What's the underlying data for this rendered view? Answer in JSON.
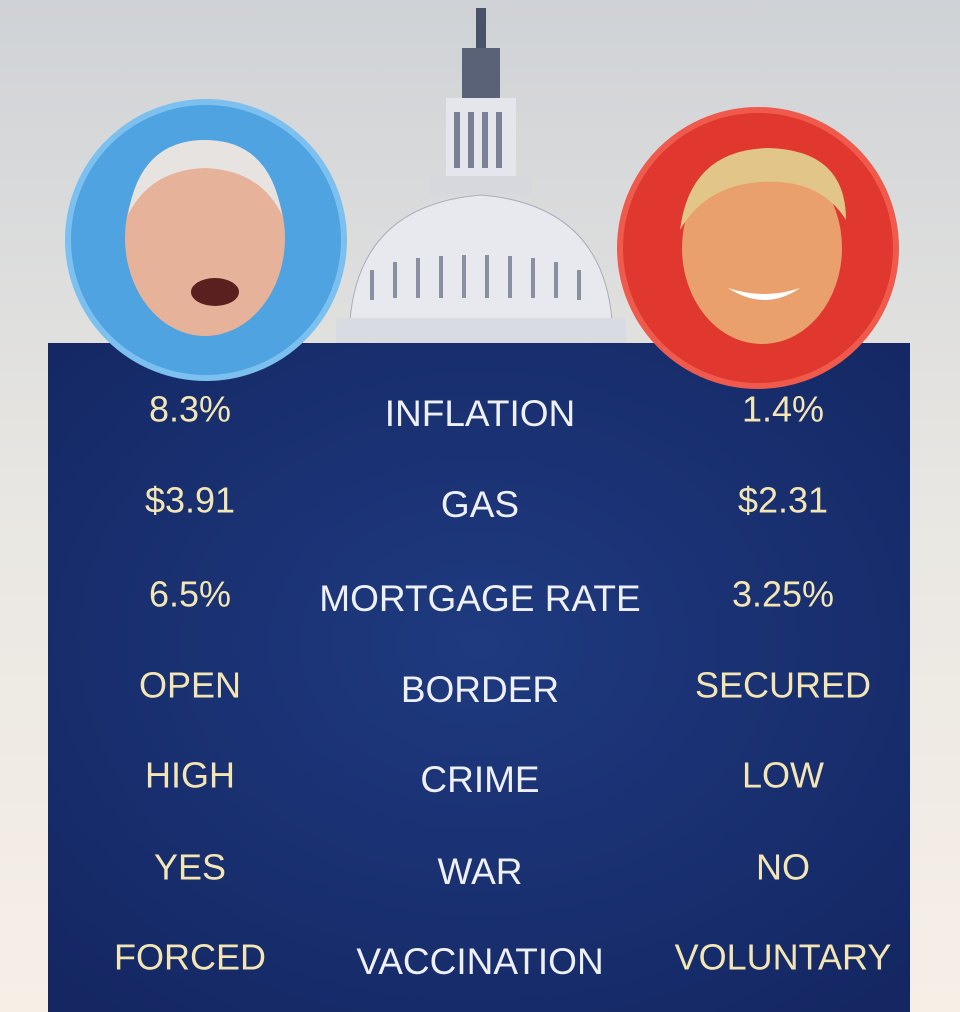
{
  "table": {
    "rows": [
      {
        "left": "8.3%",
        "label": "INFLATION",
        "right": "1.4%"
      },
      {
        "left": "$3.91",
        "label": "GAS",
        "right": "$2.31"
      },
      {
        "left": "6.5%",
        "label": "MORTGAGE RATE",
        "right": "3.25%"
      },
      {
        "left": "OPEN",
        "label": "BORDER",
        "right": "SECURED"
      },
      {
        "left": "HIGH",
        "label": "CRIME",
        "right": "LOW"
      },
      {
        "left": "YES",
        "label": "WAR",
        "right": "NO"
      },
      {
        "left": "FORCED",
        "label": "VACCINATION",
        "right": "VOLUNTARY"
      }
    ]
  }
}
